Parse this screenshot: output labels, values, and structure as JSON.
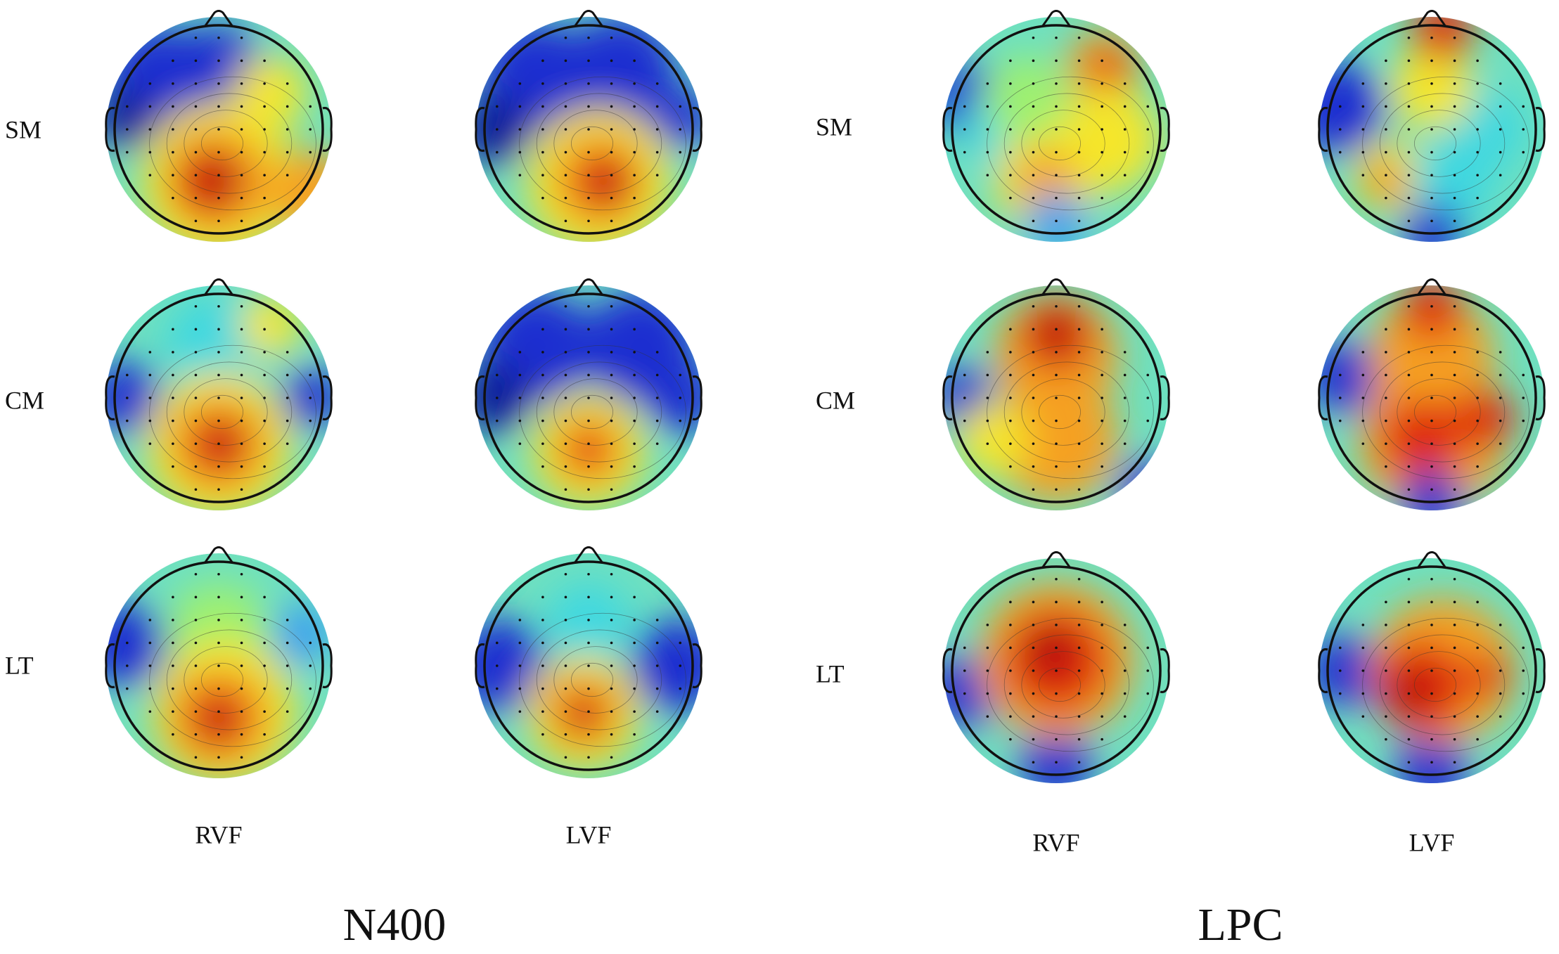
{
  "panels": [
    {
      "title": "N400",
      "columns": [
        "RVF",
        "LVF"
      ],
      "rows": [
        "SM",
        "CM",
        "LT"
      ]
    },
    {
      "title": "LPC",
      "columns": [
        "RVF",
        "LVF"
      ],
      "rows": [
        "SM",
        "CM",
        "LT"
      ]
    }
  ]
}
